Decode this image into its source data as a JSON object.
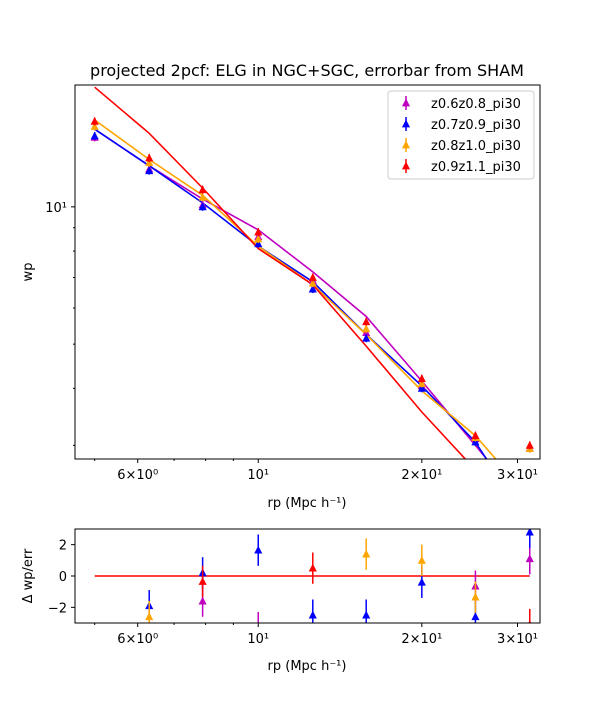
{
  "chart_data": [
    {
      "type": "line",
      "title": "projected 2pcf: ELG in NGC+SGC, errorbar from SHAM",
      "xlabel": "rp (Mpc h⁻¹)",
      "ylabel": "wp",
      "xscale": "log",
      "yscale": "log",
      "xlim": [
        4.6,
        33
      ],
      "ylim": [
        2.8,
        18.5
      ],
      "x_tick_labels": [
        "6×10⁰",
        "10¹",
        "2×10¹",
        "3×10¹"
      ],
      "x_ticks": [
        6,
        10,
        20,
        30
      ],
      "y_tick_labels": [
        "10¹"
      ],
      "y_ticks": [
        10
      ],
      "legend_position": "top-right",
      "x": [
        5,
        6.3,
        7.9,
        10,
        12.6,
        15.8,
        20,
        25.1,
        31.6
      ],
      "series": [
        {
          "name": "z0.6z0.8_pi30",
          "color": "#bf00bf",
          "points": [
            14.2,
            12.1,
            10.1,
            8.6,
            6.9,
            5.3,
            4.05,
            3.1,
            2.95
          ],
          "model": [
            14.8,
            12.3,
            10.4,
            8.9,
            7.2,
            5.75,
            4.15,
            3.0,
            2.15
          ]
        },
        {
          "name": "z0.7z0.9_pi30",
          "color": "#0000ff",
          "points": [
            14.3,
            12.0,
            10.0,
            8.3,
            6.6,
            5.15,
            4.0,
            3.05,
            2.95
          ],
          "model": [
            14.8,
            12.3,
            10.2,
            8.2,
            6.85,
            5.25,
            4.05,
            3.05,
            2.0
          ]
        },
        {
          "name": "z0.8z1.0_pi30",
          "color": "#ffa500",
          "points": [
            15.0,
            12.5,
            10.5,
            8.5,
            6.8,
            5.4,
            4.1,
            3.12,
            2.95
          ],
          "model": [
            15.5,
            12.7,
            10.6,
            8.2,
            6.75,
            5.25,
            3.95,
            3.15,
            2.3
          ]
        },
        {
          "name": "z0.9z1.1_pi30",
          "color": "#ff0000",
          "points": [
            15.4,
            12.8,
            10.9,
            8.8,
            7.0,
            5.6,
            4.2,
            3.15,
            3.0
          ],
          "model": [
            18.3,
            14.5,
            11.0,
            8.1,
            6.75,
            4.95,
            3.55,
            2.65,
            2.5
          ]
        }
      ]
    },
    {
      "type": "scatter",
      "title": "",
      "xlabel": "rp (Mpc h⁻¹)",
      "ylabel": "Δ wp/err",
      "xscale": "log",
      "xlim": [
        4.6,
        33
      ],
      "ylim": [
        -3,
        3
      ],
      "x_tick_labels": [
        "6×10⁰",
        "10¹",
        "2×10¹",
        "3×10¹"
      ],
      "x_ticks": [
        6,
        10,
        20,
        30
      ],
      "y_ticks": [
        -2,
        0,
        2
      ],
      "y_tick_labels": [
        "−2",
        "0",
        "2"
      ],
      "zero_line": {
        "color": "#ff0000",
        "x_range": [
          5,
          31.6
        ]
      },
      "x": [
        5,
        6.3,
        7.9,
        10,
        12.6,
        15.8,
        20,
        25.1,
        31.6
      ],
      "series": [
        {
          "name": "z0.6z0.8_pi30",
          "color": "#bf00bf",
          "values": [
            null,
            null,
            -1.6,
            -3.3,
            null,
            null,
            null,
            -0.65,
            1.1
          ]
        },
        {
          "name": "z0.7z0.9_pi30",
          "color": "#0000ff",
          "values": [
            null,
            -1.9,
            0.2,
            1.65,
            -2.5,
            -2.5,
            -0.4,
            -2.6,
            2.8
          ]
        },
        {
          "name": "z0.8z1.0_pi30",
          "color": "#ffa500",
          "values": [
            null,
            -2.6,
            null,
            null,
            null,
            1.4,
            1.0,
            -1.35,
            null
          ]
        },
        {
          "name": "z0.9z1.1_pi30",
          "color": "#ff0000",
          "values": [
            null,
            null,
            -0.35,
            null,
            0.5,
            null,
            null,
            null,
            -3.1
          ]
        }
      ],
      "error": 1.0
    }
  ]
}
